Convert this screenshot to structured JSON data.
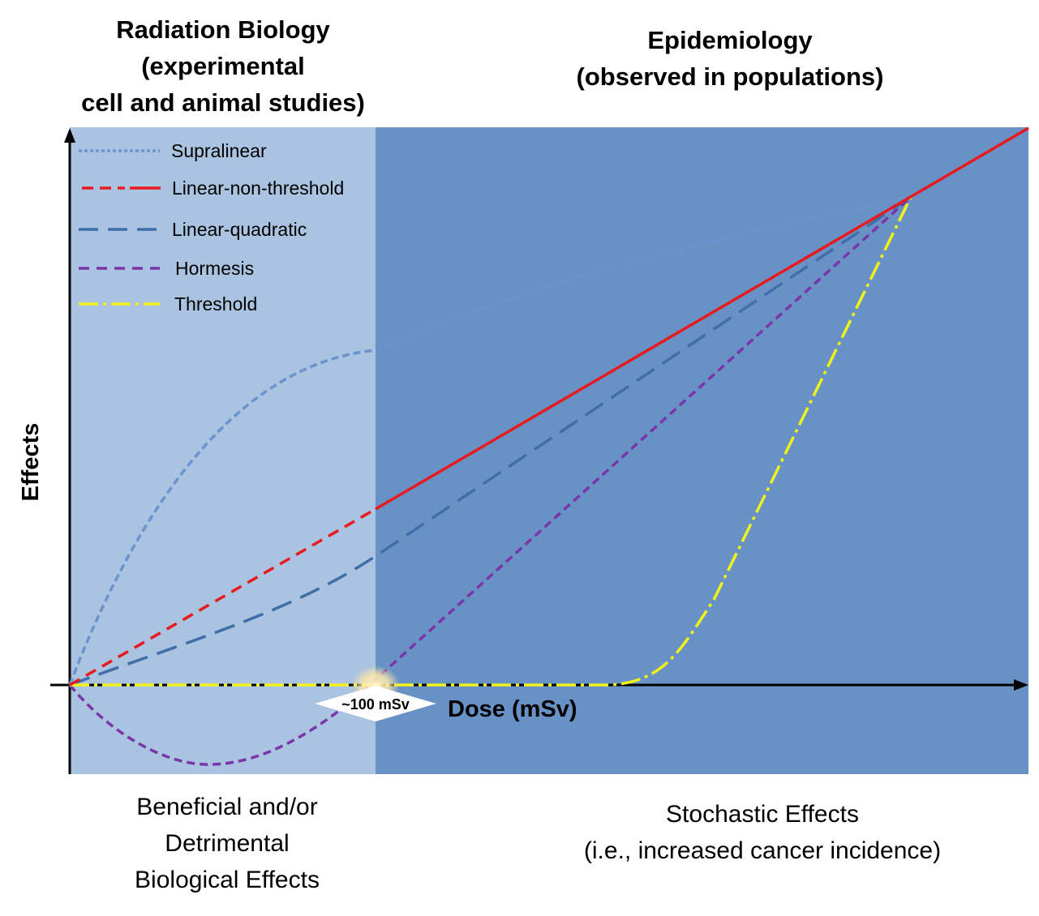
{
  "headings": {
    "left": [
      "Radiation Biology",
      "(experimental",
      "cell and animal studies)"
    ],
    "right": [
      "Epidemiology",
      "(observed in populations)"
    ]
  },
  "captions": {
    "left": [
      "Beneficial and/or",
      "Detrimental",
      "Biological Effects"
    ],
    "right": [
      "Stochastic Effects",
      "(i.e., increased cancer incidence)"
    ]
  },
  "axes": {
    "y_label": "Effects",
    "x_label": "Dose (mSv)",
    "marker_label": "~100 mSv"
  },
  "legend": [
    {
      "label": "Supralinear",
      "style": "dotted",
      "color": "#6a93cf"
    },
    {
      "label": "Linear-non-threshold",
      "style": "dashed-solid",
      "color": "#e8191f"
    },
    {
      "label": "Linear-quadratic",
      "style": "long-dash",
      "color": "#3f6ea8"
    },
    {
      "label": "Hormesis",
      "style": "short-dash",
      "color": "#7a35a8"
    },
    {
      "label": "Threshold",
      "style": "dash-dot",
      "color": "#f2f21a"
    }
  ],
  "colors": {
    "low_dose_region": "#a9c3e0",
    "high_dose_region": "#6892c5",
    "axis": "#000000"
  }
}
